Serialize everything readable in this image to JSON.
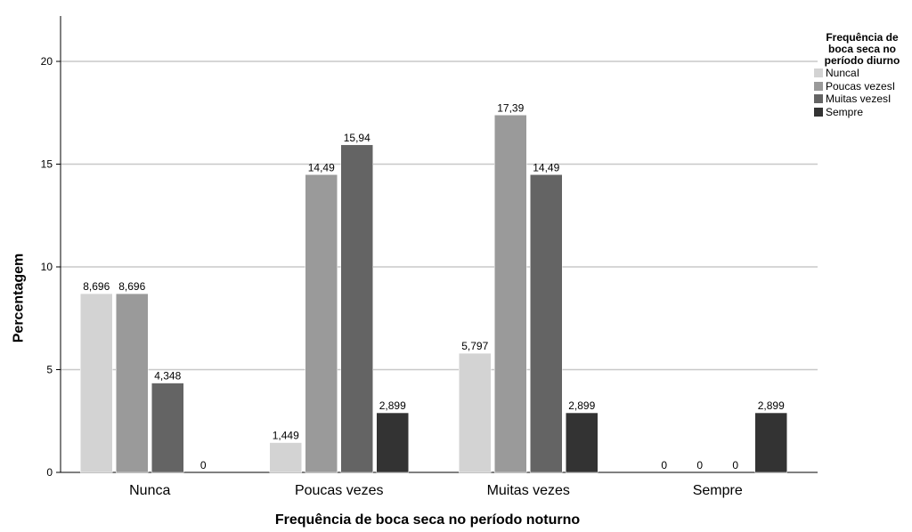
{
  "chart_data": {
    "type": "bar",
    "xlabel": "Frequência de boca seca no período noturno",
    "ylabel": "Percentagem",
    "categories": [
      "Nunca",
      "Poucas vezes",
      "Muitas vezes",
      "Sempre"
    ],
    "ylim": [
      0,
      22
    ],
    "yticks": [
      0,
      5,
      10,
      15,
      20
    ],
    "grid": true,
    "legend": {
      "title": "Frequência de boca seca no período diurno",
      "title_lines": [
        "Frequência de",
        "boca seca no",
        "período diurno"
      ],
      "position": "top-right"
    },
    "series": [
      {
        "name": "NuncaI",
        "color": "#d3d3d3",
        "values": [
          8.696,
          1.449,
          5.797,
          0
        ],
        "labels": [
          "8,696",
          "1,449",
          "5,797",
          "0"
        ]
      },
      {
        "name": "Poucas vezesI",
        "color": "#9a9a9a",
        "values": [
          8.696,
          14.49,
          17.39,
          0
        ],
        "labels": [
          "8,696",
          "14,49",
          "17,39",
          "0"
        ]
      },
      {
        "name": "Muitas vezesI",
        "color": "#646464",
        "values": [
          4.348,
          15.94,
          14.49,
          0
        ],
        "labels": [
          "4,348",
          "15,94",
          "14,49",
          "0"
        ]
      },
      {
        "name": "Sempre",
        "color": "#333333",
        "values": [
          0,
          2.899,
          2.899,
          2.899
        ],
        "labels": [
          "0",
          "2,899",
          "2,899",
          "2,899"
        ]
      }
    ]
  }
}
